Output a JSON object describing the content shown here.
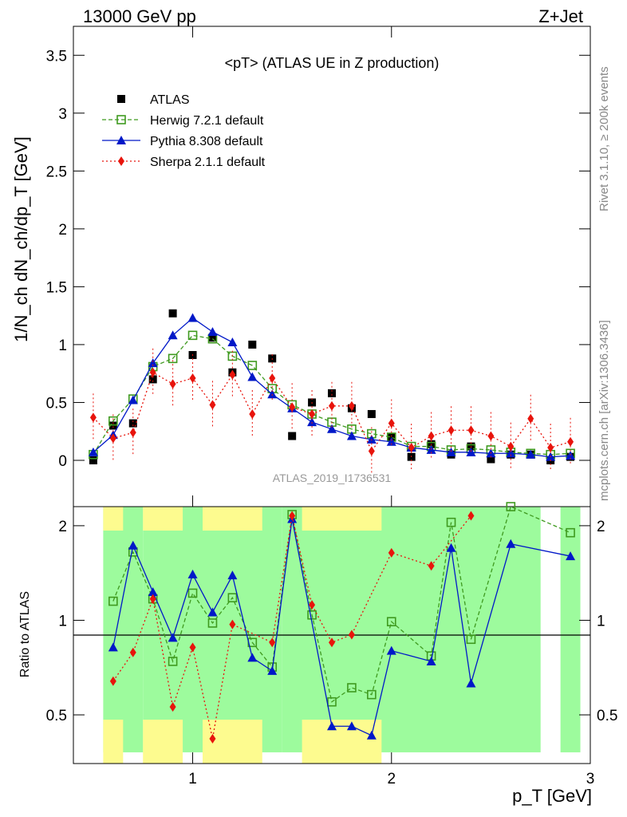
{
  "header": {
    "left": "13000 GeV pp",
    "right": "Z+Jet"
  },
  "side_labels": {
    "rivet": "Rivet 3.1.10, ≥ 200k events",
    "mcplots": "mcplots.cern.ch [arXiv:1306.3436]"
  },
  "chart_data": {
    "type": "scatter",
    "title": "<pT> (ATLAS UE in Z production)",
    "watermark": "ATLAS_2019_I1736531",
    "xlabel": "p_T [GeV]",
    "ylabel_main": "1/N_ch dN_ch/dp_T [GeV]",
    "ylabel_ratio": "Ratio to ATLAS",
    "xlim": [
      0.4,
      3.0
    ],
    "ylim_main": [
      -0.4,
      3.75
    ],
    "ylim_ratio": [
      0.35,
      2.3
    ],
    "ratio_scale": "log",
    "x_ticks": [
      1,
      2,
      3
    ],
    "y_ticks_main": [
      0,
      0.5,
      1,
      1.5,
      2,
      2.5,
      3,
      3.5
    ],
    "y_ticks_ratio": [
      0.5,
      1,
      2
    ],
    "legend_position": "top-left",
    "x": [
      0.5,
      0.6,
      0.7,
      0.8,
      0.9,
      1.0,
      1.1,
      1.2,
      1.3,
      1.4,
      1.5,
      1.6,
      1.7,
      1.8,
      1.9,
      2.0,
      2.1,
      2.2,
      2.3,
      2.4,
      2.5,
      2.6,
      2.7,
      2.8,
      2.9
    ],
    "series": [
      {
        "name": "ATLAS",
        "style": "data",
        "color": "#000000",
        "values": [
          0.0,
          0.3,
          0.32,
          0.7,
          1.27,
          0.91,
          1.06,
          0.76,
          1.0,
          0.88,
          0.21,
          0.5,
          0.58,
          0.45,
          0.4,
          0.2,
          0.03,
          0.14,
          0.05,
          0.12,
          0.01,
          0.05,
          0.05,
          0.0,
          0.03
        ]
      },
      {
        "name": "Herwig 7.2.1 default",
        "style": "open-square-dashed",
        "color": "#3f9a1f",
        "values": [
          0.05,
          0.34,
          0.53,
          0.81,
          0.88,
          1.08,
          1.05,
          0.9,
          0.82,
          0.62,
          0.48,
          0.4,
          0.33,
          0.27,
          0.23,
          0.2,
          0.12,
          0.12,
          0.09,
          0.1,
          0.09,
          0.07,
          0.06,
          0.05,
          0.06
        ]
      },
      {
        "name": "Pythia 8.308 default",
        "style": "triangle-solid",
        "color": "#0018c8",
        "values": [
          0.07,
          0.22,
          0.52,
          0.84,
          1.08,
          1.23,
          1.11,
          1.02,
          0.72,
          0.57,
          0.45,
          0.33,
          0.27,
          0.21,
          0.18,
          0.16,
          0.11,
          0.09,
          0.07,
          0.07,
          0.06,
          0.06,
          0.05,
          0.03,
          0.04
        ]
      },
      {
        "name": "Sherpa 2.1.1 default",
        "style": "diamond-dotted",
        "color": "#e8140c",
        "values": [
          0.37,
          0.19,
          0.24,
          0.76,
          0.66,
          0.71,
          0.48,
          0.74,
          0.4,
          0.71,
          0.46,
          0.4,
          0.47,
          0.47,
          0.08,
          0.32,
          0.11,
          0.21,
          0.26,
          0.26,
          0.21,
          0.12,
          0.36,
          0.11,
          0.16
        ]
      }
    ],
    "ratios": {
      "Herwig 7.2.1 default": [
        1.15,
        1.65,
        1.17,
        0.74,
        1.22,
        0.98,
        1.18,
        0.85,
        0.71,
        2.17,
        1.04,
        0.55,
        0.61,
        0.58,
        0.99,
        0.77,
        2.05,
        0.87,
        2.4,
        1.9
      ],
      "Pythia 8.308 default": [
        0.82,
        1.73,
        1.23,
        0.88,
        1.4,
        1.06,
        1.39,
        0.76,
        0.69,
        2.1,
        0.46,
        0.46,
        0.43,
        0.8,
        0.74,
        1.7,
        0.63,
        1.75,
        1.6
      ],
      "Sherpa 2.1.1 default": [
        0.64,
        0.79,
        1.17,
        0.53,
        0.82,
        0.42,
        0.97,
        0.85,
        2.15,
        1.12,
        0.85,
        0.9,
        1.64,
        1.49,
        2.15
      ]
    },
    "ratio_x": {
      "Herwig 7.2.1 default": [
        0.6,
        0.7,
        0.8,
        0.9,
        1.0,
        1.1,
        1.2,
        1.3,
        1.4,
        1.5,
        1.6,
        1.7,
        1.8,
        1.9,
        2.0,
        2.2,
        2.3,
        2.4,
        2.6,
        2.9
      ],
      "Pythia 8.308 default": [
        0.6,
        0.7,
        0.8,
        0.9,
        1.0,
        1.1,
        1.2,
        1.3,
        1.4,
        1.5,
        1.7,
        1.8,
        1.9,
        2.0,
        2.2,
        2.3,
        2.4,
        2.6,
        2.9
      ],
      "Sherpa 2.1.1 default": [
        0.6,
        0.7,
        0.8,
        0.9,
        1.0,
        1.1,
        1.2,
        1.4,
        1.5,
        1.6,
        1.7,
        1.8,
        2.0,
        2.2,
        2.4
      ]
    },
    "uncertainty_bands": {
      "green": [
        [
          0.55,
          0.75,
          0.38,
          2.3
        ],
        [
          0.75,
          1.45,
          0.38,
          2.3
        ],
        [
          1.45,
          2.75,
          0.38,
          2.3
        ],
        [
          2.85,
          2.95,
          0.38,
          2.3
        ]
      ],
      "yellow": [
        [
          0.55,
          0.65,
          0.38,
          2.3
        ],
        [
          0.75,
          0.95,
          0.38,
          2.3
        ],
        [
          1.05,
          1.35,
          0.38,
          2.3
        ],
        [
          1.55,
          1.95,
          0.38,
          2.3
        ]
      ]
    }
  }
}
